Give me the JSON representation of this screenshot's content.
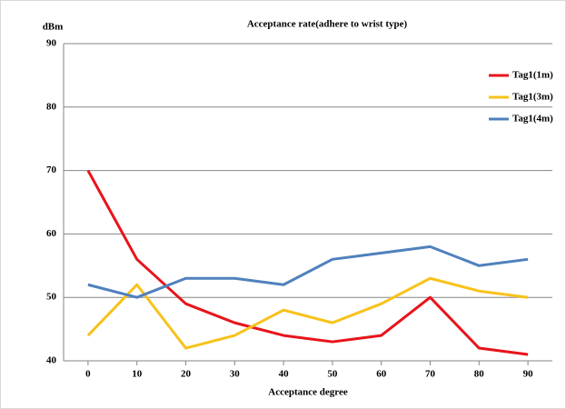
{
  "chart_data": {
    "type": "line",
    "title": "Acceptance rate(adhere to wrist type)",
    "y_label": "dBm",
    "x_label": "Acceptance degree",
    "x": [
      0,
      10,
      20,
      30,
      40,
      50,
      60,
      70,
      80,
      90
    ],
    "xlim": [
      -5,
      95
    ],
    "xticks": [
      0,
      10,
      20,
      30,
      40,
      50,
      60,
      70,
      80,
      90
    ],
    "ylim": [
      40,
      90
    ],
    "yticks": [
      40,
      50,
      60,
      70,
      80,
      90
    ],
    "grid": true,
    "legend": "top-right",
    "series": [
      {
        "name": "Tag1(1m)",
        "color": "#e8141b",
        "values": [
          70,
          56,
          49,
          46,
          44,
          43,
          44,
          50,
          42,
          41
        ]
      },
      {
        "name": "Tag1(3m)",
        "color": "#f8c21b",
        "values": [
          44,
          52,
          42,
          44,
          48,
          46,
          49,
          53,
          51,
          50
        ]
      },
      {
        "name": "Tag1(4m)",
        "color": "#4f81bd",
        "values": [
          52,
          50,
          53,
          53,
          52,
          56,
          57,
          58,
          55,
          56
        ]
      }
    ]
  }
}
